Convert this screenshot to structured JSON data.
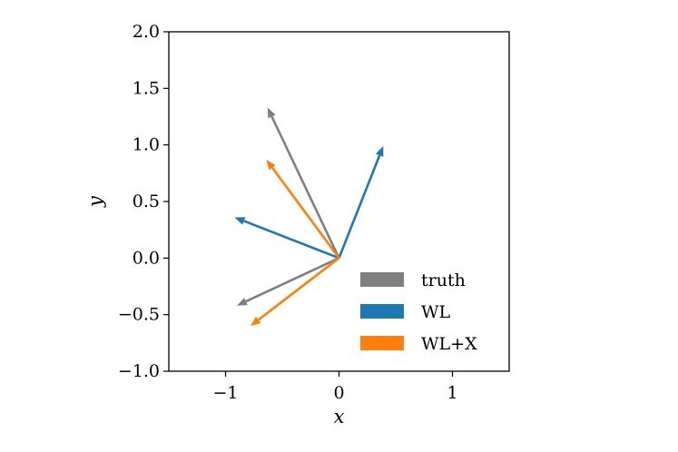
{
  "chart_data": {
    "type": "vector",
    "xlabel": "x",
    "ylabel": "y",
    "xlim": [
      -1.5,
      1.5
    ],
    "ylim": [
      -1.0,
      2.0
    ],
    "x_ticks": [
      -1,
      0,
      1
    ],
    "x_tick_labels": [
      "−1",
      "0",
      "1"
    ],
    "y_ticks": [
      -1.0,
      -0.5,
      0.0,
      0.5,
      1.0,
      1.5,
      2.0
    ],
    "y_tick_labels": [
      "−1.0",
      "−0.5",
      "0.0",
      "0.5",
      "1.0",
      "1.5",
      "2.0"
    ],
    "grid": false,
    "legend_position": "lower-right",
    "origin": [
      0,
      0
    ],
    "series": [
      {
        "name": "truth",
        "color": "#7f7f7f",
        "vectors": [
          {
            "x": -0.63,
            "y": 1.33
          },
          {
            "x": -0.9,
            "y": -0.42
          }
        ]
      },
      {
        "name": "WL",
        "color": "#1f77b4",
        "vectors": [
          {
            "x": 0.39,
            "y": 0.99
          },
          {
            "x": -0.92,
            "y": 0.36
          }
        ]
      },
      {
        "name": "WL+X",
        "color": "#ff7f0e",
        "vectors": [
          {
            "x": -0.64,
            "y": 0.87
          },
          {
            "x": -0.78,
            "y": -0.6
          }
        ]
      }
    ]
  }
}
